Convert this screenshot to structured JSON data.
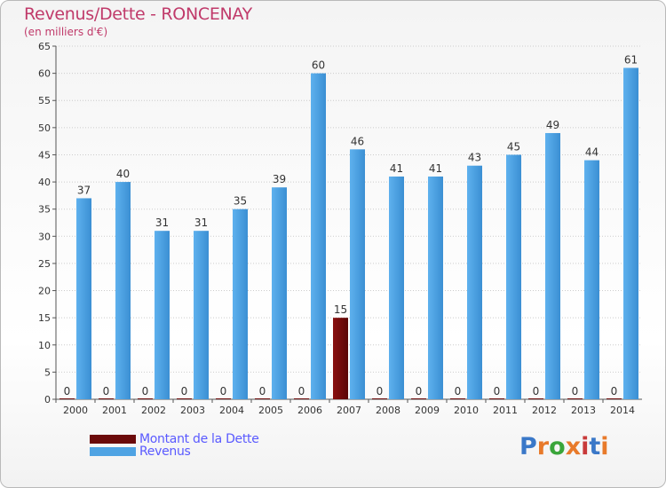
{
  "title": "Revenus/Dette - RONCENAY",
  "subtitle": "(en milliers d'€)",
  "logo": {
    "text": "Proxiti",
    "colors": [
      "#3a78c8",
      "#e87a2a",
      "#3aa53a",
      "#e87a2a",
      "#c83a3a",
      "#3a78c8",
      "#e87a2a"
    ]
  },
  "colors": {
    "dette": "#6b0a0a",
    "revenus": "#4fa3e3",
    "label": "#333333",
    "axis": "#555555",
    "grid": "#cccccc"
  },
  "chart_data": {
    "type": "bar",
    "categories": [
      "2000",
      "2001",
      "2002",
      "2003",
      "2004",
      "2005",
      "2006",
      "2007",
      "2008",
      "2009",
      "2010",
      "2011",
      "2012",
      "2013",
      "2014"
    ],
    "series": [
      {
        "name": "Montant de la Dette",
        "values": [
          0,
          0,
          0,
          0,
          0,
          0,
          0,
          15,
          0,
          0,
          0,
          0,
          0,
          0,
          0
        ]
      },
      {
        "name": "Revenus",
        "values": [
          37,
          40,
          31,
          31,
          35,
          39,
          60,
          46,
          41,
          41,
          43,
          45,
          49,
          44,
          61
        ]
      }
    ],
    "ylim": [
      0,
      65
    ],
    "yticks": [
      0,
      5,
      10,
      15,
      20,
      25,
      30,
      35,
      40,
      45,
      50,
      55,
      60,
      65
    ],
    "grid": true,
    "legend": "bottom-left"
  }
}
